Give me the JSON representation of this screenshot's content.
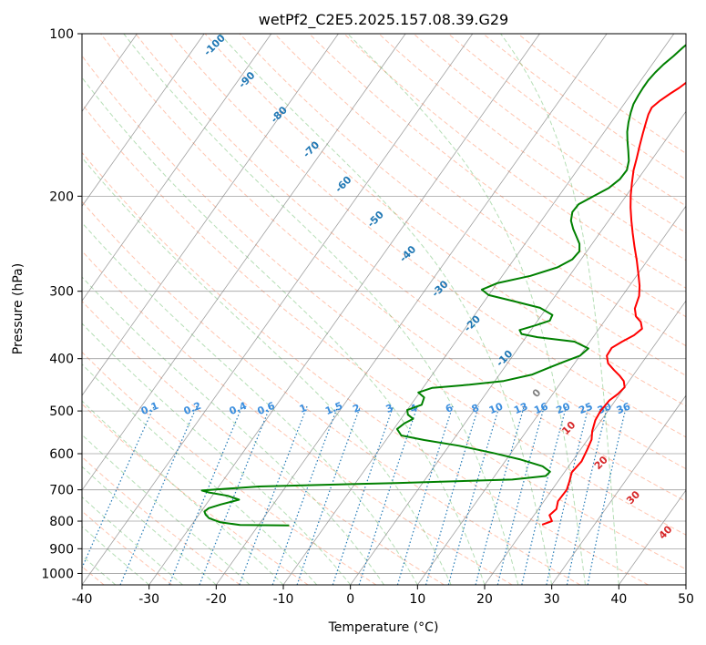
{
  "chart_data": {
    "type": "line",
    "title": "wetPf2_C2E5.2025.157.08.39.G29",
    "xlabel": "Temperature (°C)",
    "ylabel": "Pressure (hPa)",
    "xlim": [
      -40,
      50
    ],
    "ylim": [
      1050,
      100
    ],
    "y_scale": "log",
    "skew_deg_per_decade": 57,
    "xticks": [
      "-40",
      "-30",
      "-20",
      "-10",
      "0",
      "10",
      "20",
      "30",
      "40",
      "50"
    ],
    "yticks": [
      "100",
      "200",
      "300",
      "400",
      "500",
      "600",
      "700",
      "800",
      "900",
      "1000"
    ],
    "grid": true,
    "colors": {
      "temperature": "#ff0000",
      "dewpoint": "#008000",
      "dry_adiabat": "#ff7f50",
      "moist_adiabat": "#2ca02c",
      "mixing_ratio": "#1f77b4",
      "isotherm": "#808080",
      "theta_label": "#1f77b4",
      "warm_label": "#d62728"
    },
    "series": [
      {
        "name": "",
        "color": "#ff0000",
        "points": [
          [
            22.2,
            812
          ],
          [
            23.3,
            800
          ],
          [
            22.3,
            780
          ],
          [
            22.7,
            760
          ],
          [
            22.1,
            735
          ],
          [
            22.2,
            700
          ],
          [
            21.7,
            675
          ],
          [
            21.1,
            650
          ],
          [
            21.4,
            620
          ],
          [
            21.0,
            590
          ],
          [
            20.6,
            565
          ],
          [
            19.8,
            545
          ],
          [
            19.1,
            520
          ],
          [
            18.9,
            500
          ],
          [
            19.1,
            478
          ],
          [
            19.7,
            465
          ],
          [
            20.0,
            452
          ],
          [
            19.2,
            440
          ],
          [
            18.0,
            430
          ],
          [
            16.6,
            420
          ],
          [
            15.0,
            408
          ],
          [
            14.0,
            395
          ],
          [
            13.9,
            382
          ],
          [
            14.8,
            372
          ],
          [
            15.9,
            362
          ],
          [
            16.4,
            352
          ],
          [
            15.5,
            342
          ],
          [
            14.2,
            334
          ],
          [
            13.2,
            323
          ],
          [
            12.5,
            306
          ],
          [
            11.5,
            293
          ],
          [
            10.0,
            278
          ],
          [
            8.4,
            263
          ],
          [
            6.6,
            248
          ],
          [
            4.9,
            234
          ],
          [
            3.4,
            222
          ],
          [
            1.9,
            210
          ],
          [
            0.6,
            199
          ],
          [
            -0.5,
            189
          ],
          [
            -1.6,
            179
          ],
          [
            -2.4,
            170
          ],
          [
            -3.3,
            161
          ],
          [
            -4.1,
            153
          ],
          [
            -4.8,
            146
          ],
          [
            -5.3,
            141
          ],
          [
            -5.5,
            137
          ],
          [
            -5.0,
            133
          ],
          [
            -4.2,
            129
          ],
          [
            -3.5,
            126
          ],
          [
            -2.8,
            122
          ],
          [
            -2.4,
            119
          ],
          [
            -2.3,
            115
          ],
          [
            -2.2,
            111
          ],
          [
            -2.0,
            107
          ],
          [
            -1.7,
            103
          ],
          [
            -1.3,
            100
          ]
        ]
      },
      {
        "name": "",
        "color": "#008000",
        "points": [
          [
            -15.4,
            815
          ],
          [
            -22.8,
            813
          ],
          [
            -26.0,
            804
          ],
          [
            -28.1,
            790
          ],
          [
            -29.0,
            778
          ],
          [
            -29.5,
            768
          ],
          [
            -29.2,
            757
          ],
          [
            -27.8,
            745
          ],
          [
            -25.6,
            730
          ],
          [
            -27.7,
            718
          ],
          [
            -30.8,
            708
          ],
          [
            -32.1,
            702
          ],
          [
            -24.0,
            690
          ],
          [
            -4.0,
            680
          ],
          [
            13.0,
            670
          ],
          [
            17.6,
            660
          ],
          [
            17.8,
            648
          ],
          [
            16.1,
            633
          ],
          [
            12.1,
            615
          ],
          [
            7.3,
            598
          ],
          [
            1.5,
            580
          ],
          [
            -4.3,
            566
          ],
          [
            -8.2,
            555
          ],
          [
            -9.5,
            540
          ],
          [
            -9.0,
            527
          ],
          [
            -8.2,
            517
          ],
          [
            -9.4,
            508
          ],
          [
            -10.0,
            498
          ],
          [
            -8.4,
            487
          ],
          [
            -8.8,
            472
          ],
          [
            -10.2,
            462
          ],
          [
            -8.6,
            453
          ],
          [
            -3.4,
            447
          ],
          [
            1.3,
            440
          ],
          [
            4.9,
            428
          ],
          [
            6.6,
            416
          ],
          [
            8.3,
            405
          ],
          [
            10.0,
            395
          ],
          [
            10.5,
            383
          ],
          [
            7.7,
            372
          ],
          [
            1.7,
            365
          ],
          [
            -1.0,
            360
          ],
          [
            -1.7,
            354
          ],
          [
            0.2,
            347
          ],
          [
            1.8,
            340
          ],
          [
            1.6,
            332
          ],
          [
            -1.0,
            322
          ],
          [
            -5.6,
            313
          ],
          [
            -10.0,
            305
          ],
          [
            -11.6,
            298
          ],
          [
            -10.0,
            290
          ],
          [
            -5.8,
            281
          ],
          [
            -2.7,
            271
          ],
          [
            -1.3,
            262
          ],
          [
            -1.1,
            253
          ],
          [
            -1.9,
            245
          ],
          [
            -3.2,
            237
          ],
          [
            -4.4,
            230
          ],
          [
            -5.6,
            222
          ],
          [
            -6.3,
            214
          ],
          [
            -6.2,
            207
          ],
          [
            -4.8,
            200
          ],
          [
            -3.4,
            193
          ],
          [
            -2.7,
            186
          ],
          [
            -2.6,
            179
          ],
          [
            -3.3,
            172
          ],
          [
            -4.4,
            165
          ],
          [
            -5.6,
            158
          ],
          [
            -6.6,
            152
          ],
          [
            -7.4,
            146
          ],
          [
            -8.1,
            140
          ],
          [
            -8.6,
            135
          ],
          [
            -8.8,
            130
          ],
          [
            -8.9,
            126
          ],
          [
            -8.9,
            122
          ],
          [
            -8.7,
            118
          ],
          [
            -8.3,
            114
          ],
          [
            -7.7,
            110
          ],
          [
            -7.2,
            106
          ],
          [
            -6.5,
            102
          ],
          [
            -6.0,
            100
          ]
        ]
      }
    ],
    "dry_adiabat_thetas_c": [
      -140,
      -130,
      -120,
      -110,
      -100,
      -90,
      -80,
      -70,
      -60,
      -50,
      -40,
      -30,
      -20,
      -10,
      0,
      10,
      20,
      30,
      40,
      50,
      60,
      70,
      80,
      90,
      100,
      110,
      120,
      130,
      140,
      150,
      160,
      170,
      180,
      190
    ],
    "moist_adiabat_base_temps_c": [
      -40,
      -35,
      -30,
      -25,
      -20,
      -15,
      -10,
      -5,
      0,
      5,
      10,
      15,
      20,
      25,
      30,
      35,
      40
    ],
    "mixing_ratio_values": [
      0.1,
      0.2,
      0.4,
      0.6,
      1,
      1.5,
      2,
      3,
      4,
      6,
      8,
      10,
      13,
      16,
      20,
      25,
      30,
      36
    ],
    "mixing_ratio_labels": [
      "0.1",
      "0.2",
      "0.4",
      "0.6",
      "1",
      "1.5",
      "2",
      "3",
      "4",
      "6",
      "8",
      "10",
      "13",
      "16",
      "20",
      "25",
      "30",
      "36"
    ],
    "theta_labels": [
      {
        "text": "-100",
        "color": "theta"
      },
      {
        "text": "-90",
        "color": "theta"
      },
      {
        "text": "-80",
        "color": "theta"
      },
      {
        "text": "-70",
        "color": "theta"
      },
      {
        "text": "-60",
        "color": "theta"
      },
      {
        "text": "-50",
        "color": "theta"
      },
      {
        "text": "-40",
        "color": "theta"
      },
      {
        "text": "-30",
        "color": "theta"
      },
      {
        "text": "-20",
        "color": "theta"
      },
      {
        "text": "-10",
        "color": "theta"
      },
      {
        "text": "0",
        "color": "neutral"
      },
      {
        "text": "10",
        "color": "warm"
      },
      {
        "text": "20",
        "color": "warm"
      },
      {
        "text": "30",
        "color": "warm"
      },
      {
        "text": "40",
        "color": "warm"
      }
    ]
  }
}
